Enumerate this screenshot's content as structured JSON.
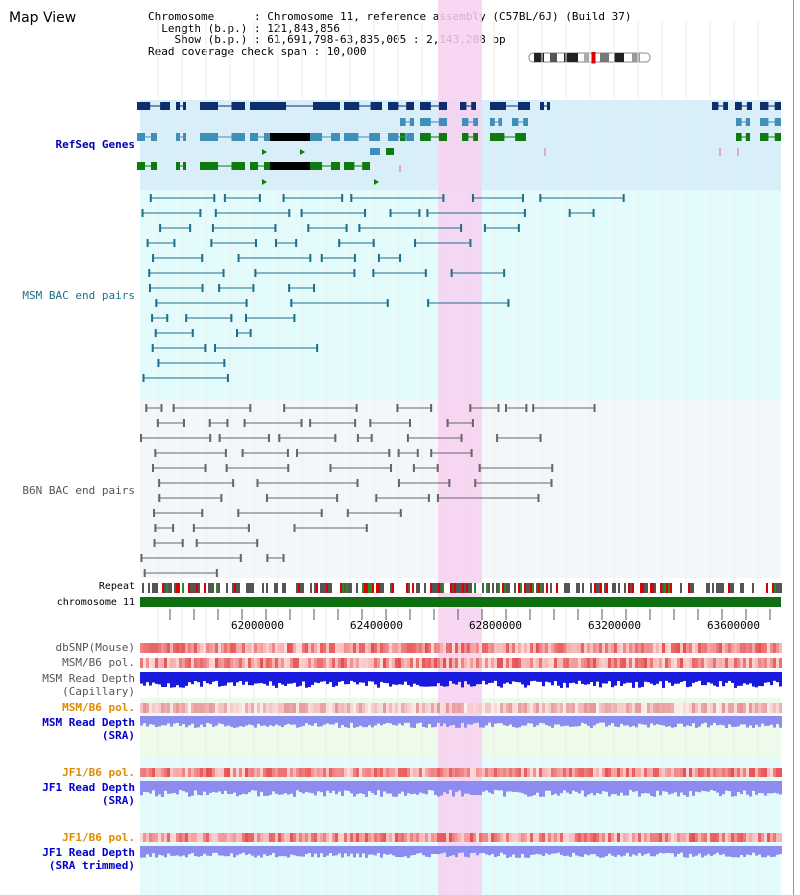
{
  "view": {
    "title": "Map View",
    "info_lines": [
      "Chromosome      : Chromosome 11, reference assembly (C57BL/6J) (Build 37)",
      "  Length (b.p.) : 121,843,856",
      "    Show (b.p.) : 61,691,798-63,835,005 : 2,143,208 bp",
      "Read coverage check span : 10,000"
    ]
  },
  "tracks": {
    "refseq": "RefSeq Genes",
    "msm_bac": "MSM BAC end pairs",
    "b6n_bac": "B6N BAC end pairs",
    "repeat": "Repeat",
    "chromosome": "chromosome 11",
    "dbsnp": "dbSNP(Mouse)",
    "msm_b6_pol": "MSM/B6 pol.",
    "msm_depth_cap_1": "MSM Read Depth",
    "msm_depth_cap_2": "(Capillary)",
    "msm_b6_pol_sra": "MSM/B6 pol.",
    "msm_depth_sra_1": "MSM Read Depth",
    "msm_depth_sra_2": "(SRA)",
    "jf1_b6_pol": "JF1/B6 pol.",
    "jf1_depth_sra_1": "JF1 Read Depth",
    "jf1_depth_sra_2": "(SRA)",
    "jf1_b6_pol_trim": "JF1/B6 pol.",
    "jf1_depth_trim_1": "JF1 Read Depth",
    "jf1_depth_trim_2": "(SRA trimmed)"
  },
  "axis": {
    "ticks": [
      "62000000",
      "62400000",
      "62800000",
      "63200000",
      "63600000"
    ]
  },
  "colors": {
    "highlight": "#f7d0f0",
    "refseq_bg": "#d8eef8",
    "msm_bg": "#e4fbfb",
    "b6n_bg": "#f3f7fa",
    "chrom": "#0f6e0f",
    "gene_dark": "#0d2f6e",
    "gene_mid": "#3f8fb8",
    "gene_green": "#0f7a0f"
  }
}
